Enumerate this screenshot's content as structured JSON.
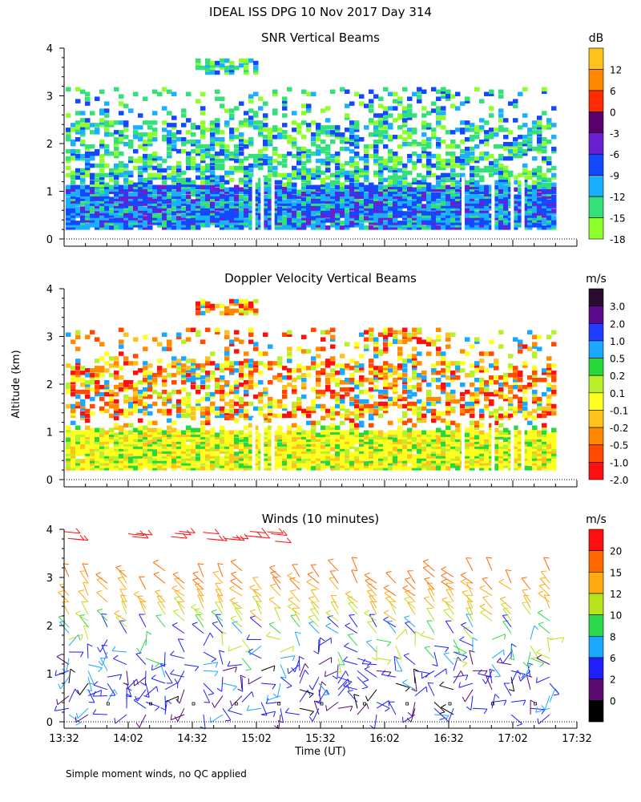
{
  "title": "IDEAL ISS DPG  10 Nov 2017 Day 314",
  "footnote": "Simple moment winds, no QC applied",
  "chart_data": [
    {
      "type": "heatmap",
      "title": "SNR Vertical Beams",
      "ylabel": "",
      "ylim": [
        0,
        4
      ],
      "yticks": [
        0,
        1,
        2,
        3,
        4
      ],
      "xlim": [
        "13:32",
        "17:32"
      ],
      "units": "dB",
      "colorbar_labels": [
        "12",
        "6",
        "0",
        "-3",
        "-6",
        "-9",
        "-12",
        "-15",
        "-18"
      ],
      "colorbar_colors": [
        "#ffc21c",
        "#ff8a00",
        "#ff2a00",
        "#5a006e",
        "#6a1fd0",
        "#1448ff",
        "#1ab0ff",
        "#35e07a",
        "#8fff2c"
      ],
      "layers": [
        {
          "altitude_km": 0.3,
          "value_db": -9
        },
        {
          "altitude_km": 0.6,
          "value_db": -6
        },
        {
          "altitude_km": 1.0,
          "value_db": -12
        },
        {
          "altitude_km": 1.4,
          "value_db": -15
        },
        {
          "altitude_km": 2.1,
          "value_db": -12
        },
        {
          "altitude_km": 2.6,
          "value_db": -15
        },
        {
          "altitude_km": 3.5,
          "value_db": -18
        }
      ]
    },
    {
      "type": "heatmap",
      "title": "Doppler Velocity Vertical Beams",
      "ylabel": "Altitude (km)",
      "ylim": [
        0,
        4
      ],
      "yticks": [
        0,
        1,
        2,
        3,
        4
      ],
      "xlim": [
        "13:32",
        "17:32"
      ],
      "units": "m/s",
      "colorbar_labels": [
        "3.0",
        "2.0",
        "1.0",
        "0.5",
        "0.2",
        "0.1",
        "-0.1",
        "-0.2",
        "-0.5",
        "-1.0",
        "-2.0"
      ],
      "colorbar_colors": [
        "#2a0a2e",
        "#5a0a8c",
        "#1e3cff",
        "#1aa8ff",
        "#26d83a",
        "#b8f02a",
        "#ffff20",
        "#ffc21c",
        "#ff8a00",
        "#ff4a00",
        "#ff1010"
      ],
      "layers": [
        {
          "altitude_km": 0.4,
          "value_ms": -0.1
        },
        {
          "altitude_km": 0.8,
          "value_ms": 0.1
        },
        {
          "altitude_km": 1.3,
          "value_ms": -0.2
        },
        {
          "altitude_km": 2.0,
          "value_ms": -0.5
        },
        {
          "altitude_km": 3.5,
          "value_ms": -1.0
        }
      ]
    },
    {
      "type": "scatter",
      "title": "Winds (10 minutes)",
      "xlabel": "Time (UT)",
      "ylabel": "",
      "ylim": [
        0,
        4
      ],
      "yticks": [
        0,
        1,
        2,
        3,
        4
      ],
      "xticks": [
        "13:32",
        "14:02",
        "14:32",
        "15:02",
        "15:32",
        "16:02",
        "16:32",
        "17:02",
        "17:32"
      ],
      "units": "m/s",
      "colorbar_labels": [
        "20",
        "15",
        "12",
        "10",
        "8",
        "6",
        "2",
        "0"
      ],
      "colorbar_colors": [
        "#ff1010",
        "#ff6a00",
        "#ffaa10",
        "#b8e21a",
        "#2ad84a",
        "#1aa8ff",
        "#1e1eff",
        "#5a0a6e",
        "#000000"
      ],
      "profiles": [
        {
          "time_min": 2,
          "speed_ms": [
            4,
            6,
            10,
            14,
            20
          ]
        },
        {
          "time_min": 12,
          "speed_ms": [
            3,
            6,
            9,
            13,
            18
          ]
        },
        {
          "time_min": 32,
          "speed_ms": [
            2,
            5,
            9,
            12,
            19
          ]
        },
        {
          "time_min": 52,
          "speed_ms": [
            3,
            7,
            10,
            13,
            20
          ]
        },
        {
          "time_min": 72,
          "speed_ms": [
            2,
            4,
            8,
            12,
            21
          ]
        },
        {
          "time_min": 102,
          "speed_ms": [
            3,
            6,
            9,
            13
          ]
        },
        {
          "time_min": 122,
          "speed_ms": [
            2,
            6,
            9,
            12
          ]
        },
        {
          "time_min": 152,
          "speed_ms": [
            3,
            7,
            11,
            14
          ]
        },
        {
          "time_min": 172,
          "speed_ms": [
            2,
            6,
            10,
            13
          ]
        },
        {
          "time_min": 202,
          "speed_ms": [
            3,
            5,
            9,
            12
          ]
        }
      ]
    }
  ]
}
